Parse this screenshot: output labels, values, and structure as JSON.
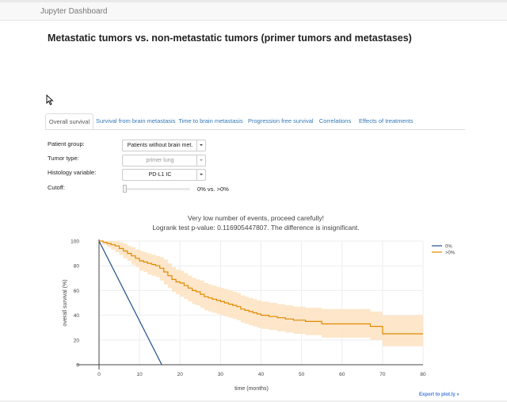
{
  "navbar": {
    "brand": "Jupyter Dashboard"
  },
  "page": {
    "title": "Metastatic tumors vs. non-metastatic tumors (primer tumors and metastases)"
  },
  "tabs": [
    {
      "label": "Overall survival",
      "active": true
    },
    {
      "label": "Survival from brain metastasis",
      "active": false
    },
    {
      "label": "Time to brain metastasis",
      "active": false
    },
    {
      "label": "Progression free survival",
      "active": false
    },
    {
      "label": "Correlations",
      "active": false
    },
    {
      "label": "Effects of treatments",
      "active": false
    }
  ],
  "form": {
    "patient_group": {
      "label": "Patient group:",
      "value": "Patients without brain met."
    },
    "tumor_type": {
      "label": "Tumor type:",
      "value": "primer lung",
      "disabled": true
    },
    "histology": {
      "label": "Histology variable:",
      "value": "PD-L1 IC"
    },
    "cutoff": {
      "label": "Cutoff:",
      "readout": "0% vs. >0%",
      "slider_fraction": 0
    }
  },
  "messages": {
    "warning": "Very low number of events, proceed carefully!",
    "logrank": "Logrank test p-value: 0.116905447807. The difference is insignificant."
  },
  "export_link": "Export to plot.ly »",
  "chart_data": {
    "type": "line",
    "xlabel": "time (months)",
    "ylabel": "overall survival (%)",
    "xlim": [
      0,
      80
    ],
    "ylim": [
      0,
      100
    ],
    "xticks": [
      0,
      10,
      20,
      30,
      40,
      50,
      60,
      70,
      80
    ],
    "yticks": [
      0,
      20,
      40,
      60,
      80,
      100
    ],
    "grid": true,
    "legend_position": "top-right",
    "series": [
      {
        "name": "0%",
        "color": "#1f4e8c",
        "step": false,
        "x": [
          0,
          15.5
        ],
        "y": [
          100,
          0
        ]
      },
      {
        "name": ">0%",
        "color": "#e08a00",
        "band_color": "#fde2bf",
        "step": true,
        "x": [
          0,
          1,
          2,
          3,
          4,
          5,
          6,
          7,
          8,
          9,
          10,
          11,
          12,
          13,
          14,
          15,
          16,
          17,
          18,
          19,
          20,
          21,
          22,
          23,
          24,
          25,
          26,
          27,
          28,
          29,
          30,
          31,
          32,
          33,
          34,
          35,
          36,
          37,
          38,
          39,
          40,
          42,
          44,
          46,
          48,
          50,
          51,
          53,
          55,
          60,
          65,
          67,
          69,
          70,
          80
        ],
        "y": [
          100,
          99,
          98,
          97,
          96,
          94,
          92,
          90,
          88,
          86,
          84,
          83,
          82,
          81,
          80,
          78,
          75,
          72,
          69,
          67,
          66,
          64,
          62,
          60,
          59,
          57,
          55,
          54,
          53,
          52,
          51,
          50,
          49,
          48,
          47,
          45,
          44,
          43,
          42,
          41,
          40,
          39,
          38,
          37,
          36,
          36,
          35,
          35,
          33,
          33,
          33,
          31,
          31,
          25,
          25
        ],
        "lower": [
          100,
          97,
          95,
          93,
          91,
          89,
          86,
          84,
          81,
          79,
          76,
          75,
          73,
          72,
          71,
          68,
          65,
          62,
          59,
          57,
          55,
          53,
          51,
          49,
          48,
          46,
          44,
          43,
          42,
          41,
          40,
          39,
          38,
          37,
          36,
          34,
          33,
          32,
          31,
          30,
          29,
          28,
          27,
          26,
          25,
          25,
          24,
          24,
          22,
          22,
          22,
          20,
          20,
          15,
          15
        ],
        "upper": [
          100,
          100,
          100,
          100,
          100,
          99,
          98,
          96,
          95,
          93,
          92,
          91,
          90,
          89,
          88,
          87,
          85,
          82,
          79,
          77,
          76,
          74,
          72,
          70,
          69,
          68,
          66,
          65,
          64,
          63,
          62,
          61,
          60,
          59,
          58,
          56,
          55,
          54,
          53,
          52,
          51,
          50,
          49,
          48,
          47,
          47,
          46,
          46,
          45,
          45,
          45,
          43,
          43,
          40,
          40
        ]
      }
    ]
  }
}
